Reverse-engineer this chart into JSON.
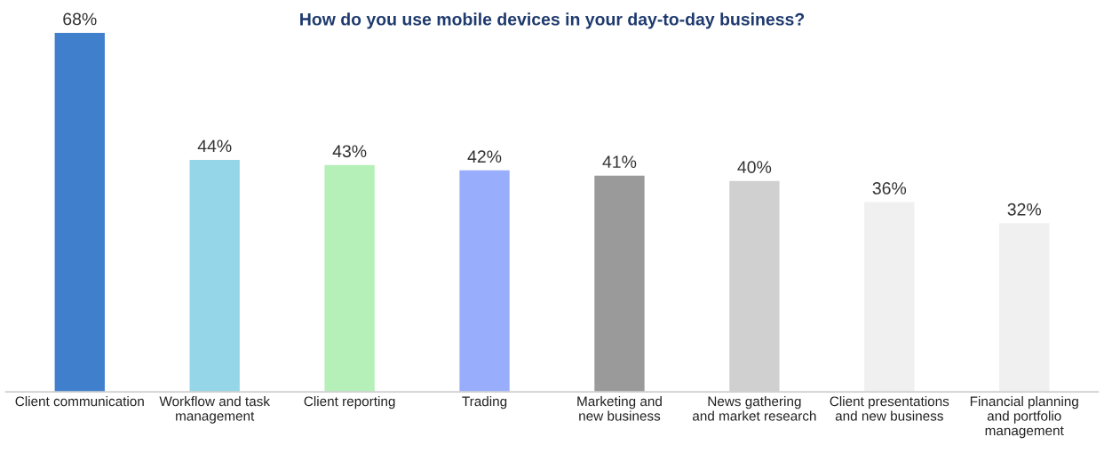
{
  "chart_data": {
    "type": "bar",
    "title": "How do you use mobile devices in your day-to-day business?",
    "categories": [
      "Client communication",
      "Workflow and task\nmanagement",
      "Client reporting",
      "Trading",
      "Marketing and\nnew business",
      "News gathering\nand market research",
      "Client presentations\nand new business",
      "Financial planning\nand portfolio\nmanagement"
    ],
    "values": [
      68,
      44,
      43,
      42,
      41,
      40,
      36,
      32
    ],
    "value_labels": [
      "68%",
      "44%",
      "43%",
      "42%",
      "41%",
      "40%",
      "36%",
      "32%"
    ],
    "colors": [
      "#3f7fcc",
      "#95d6e8",
      "#b5f0b8",
      "#98aefc",
      "#9a9a9a",
      "#d0d0d0",
      "#f0f0f0",
      "#f0f0f0"
    ],
    "grid": false,
    "legend": false
  }
}
